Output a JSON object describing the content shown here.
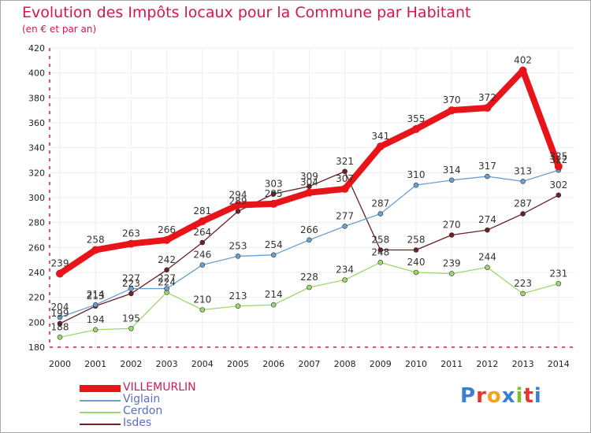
{
  "header": {
    "title": "Evolution des Impôts locaux pour la Commune par Habitant",
    "subtitle": "(en € et par an)"
  },
  "brand": {
    "logo_text": "Proxiti",
    "logo_colors": [
      "#3a7fd0",
      "#e5352d",
      "#f6a21b",
      "#3a7fd0",
      "#7bbf2b",
      "#e5352d",
      "#3a7fd0"
    ]
  },
  "colors": {
    "title": "#d4174f",
    "axis": "#d4174f",
    "grid": "#eeeeee"
  },
  "chart_data": {
    "type": "line",
    "title": "Evolution des Impôts locaux pour la Commune par Habitant",
    "subtitle": "(en € et par an)",
    "x": [
      "2000",
      "2001",
      "2002",
      "2003",
      "2004",
      "2005",
      "2006",
      "2007",
      "2008",
      "2009",
      "2010",
      "2011",
      "2012",
      "2013",
      "2014"
    ],
    "y_ticks": [
      180,
      200,
      220,
      240,
      260,
      280,
      300,
      320,
      340,
      360,
      380,
      400,
      420
    ],
    "ylim": [
      180,
      420
    ],
    "grid": true,
    "legend_position": "bottom-left",
    "series": [
      {
        "name": "Isdes",
        "color": "#6b1f26",
        "values": [
          199,
          213,
          223,
          242,
          264,
          289,
          303,
          309,
          321,
          258,
          258,
          270,
          274,
          287,
          302
        ]
      },
      {
        "name": "Cerdon",
        "color": "#9bd96a",
        "values": [
          188,
          194,
          195,
          224,
          210,
          213,
          214,
          228,
          234,
          248,
          240,
          239,
          244,
          223,
          231
        ]
      },
      {
        "name": "Viglain",
        "color": "#6a9fd0",
        "values": [
          204,
          214,
          227,
          227,
          246,
          253,
          254,
          266,
          277,
          287,
          310,
          314,
          317,
          313,
          322
        ]
      },
      {
        "name": "VILLEMURLIN",
        "color": "#e8141a",
        "values": [
          239,
          258,
          263,
          266,
          281,
          294,
          295,
          304,
          307,
          341,
          355,
          370,
          372,
          402,
          325
        ]
      }
    ]
  }
}
